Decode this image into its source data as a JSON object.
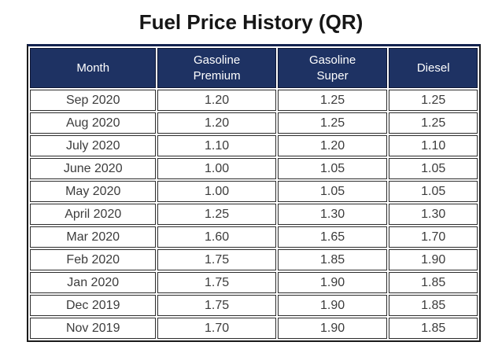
{
  "page_title": "Fuel Price History (QR)",
  "colors": {
    "header_bg": "#1e3263",
    "header_text": "#ffffff",
    "outer_border": "#1b1b1b",
    "cell_border": "#2c2c2c",
    "cell_text": "#3c3c3c",
    "title_text": "#161616"
  },
  "table": {
    "columns": [
      {
        "key": "month",
        "label": "Month"
      },
      {
        "key": "premium",
        "label": "Gasoline\nPremium"
      },
      {
        "key": "super",
        "label": "Gasoline\nSuper"
      },
      {
        "key": "diesel",
        "label": "Diesel"
      }
    ],
    "rows": [
      {
        "month": "Sep 2020",
        "premium": "1.20",
        "super": "1.25",
        "diesel": "1.25"
      },
      {
        "month": "Aug 2020",
        "premium": "1.20",
        "super": "1.25",
        "diesel": "1.25"
      },
      {
        "month": "July 2020",
        "premium": "1.10",
        "super": "1.20",
        "diesel": "1.10"
      },
      {
        "month": "June 2020",
        "premium": "1.00",
        "super": "1.05",
        "diesel": "1.05"
      },
      {
        "month": "May 2020",
        "premium": "1.00",
        "super": "1.05",
        "diesel": "1.05"
      },
      {
        "month": "April 2020",
        "premium": "1.25",
        "super": "1.30",
        "diesel": "1.30"
      },
      {
        "month": "Mar 2020",
        "premium": "1.60",
        "super": "1.65",
        "diesel": "1.70"
      },
      {
        "month": "Feb 2020",
        "premium": "1.75",
        "super": "1.85",
        "diesel": "1.90"
      },
      {
        "month": "Jan 2020",
        "premium": "1.75",
        "super": "1.90",
        "diesel": "1.85"
      },
      {
        "month": "Dec 2019",
        "premium": "1.75",
        "super": "1.90",
        "diesel": "1.85"
      },
      {
        "month": "Nov 2019",
        "premium": "1.70",
        "super": "1.90",
        "diesel": "1.85"
      }
    ]
  }
}
